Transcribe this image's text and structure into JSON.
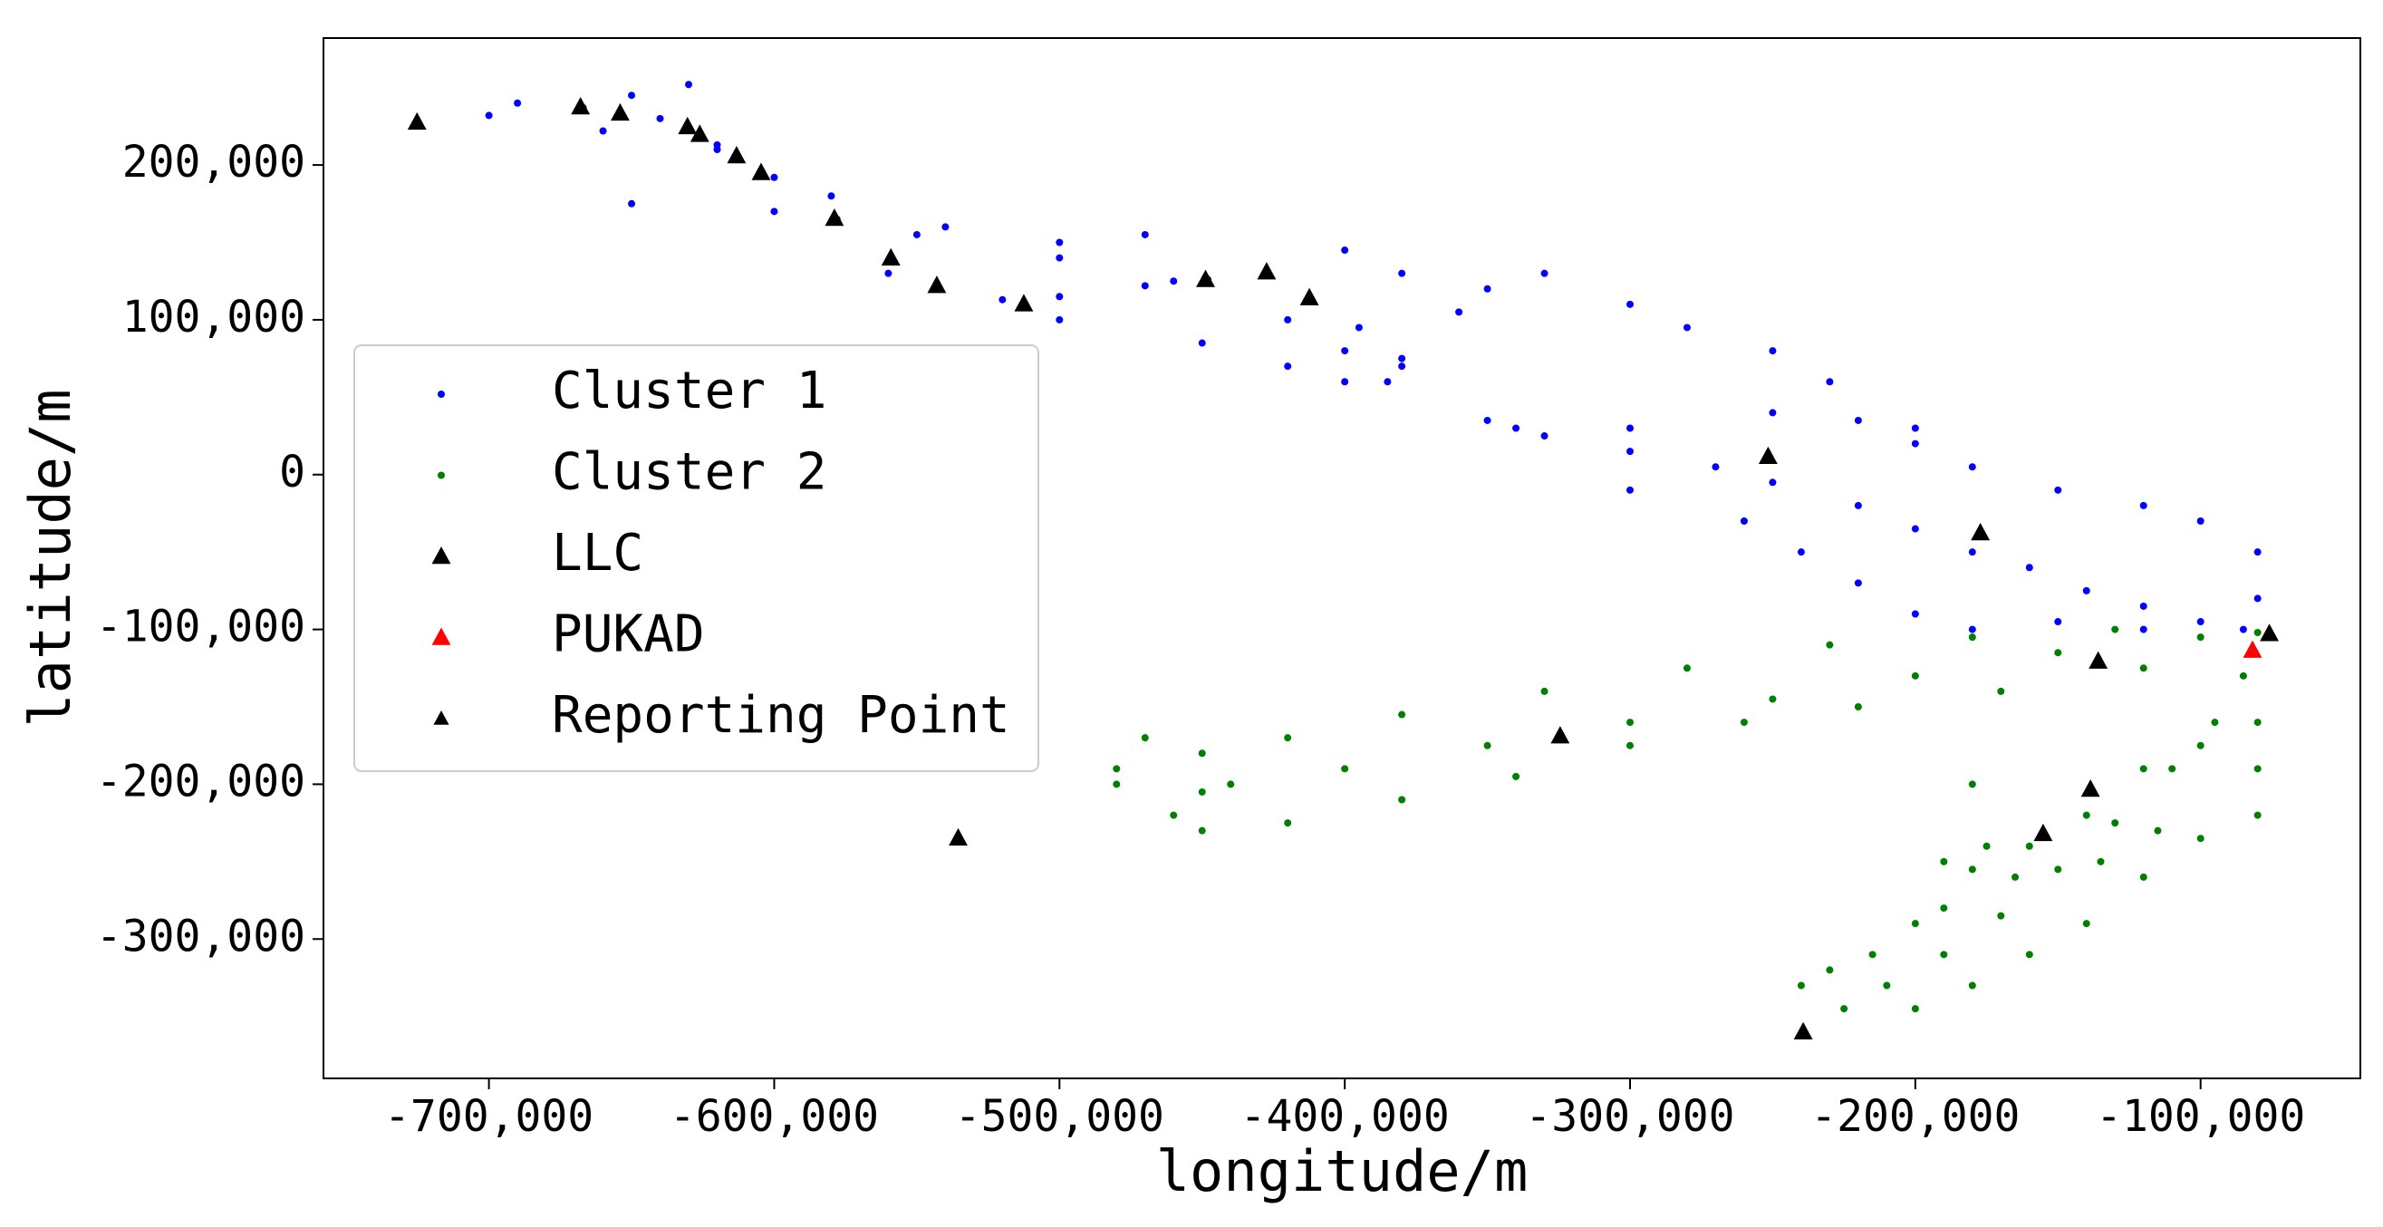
{
  "chart_data": {
    "type": "scatter",
    "xlabel": "longitude/m",
    "ylabel": "latitude/m",
    "xlim": [
      -758000,
      -44000
    ],
    "ylim": [
      -390000,
      282000
    ],
    "xticks": [
      {
        "value": -700000,
        "label": "-700,000"
      },
      {
        "value": -600000,
        "label": "-600,000"
      },
      {
        "value": -500000,
        "label": "-500,000"
      },
      {
        "value": -400000,
        "label": "-400,000"
      },
      {
        "value": -300000,
        "label": "-300,000"
      },
      {
        "value": -200000,
        "label": "-200,000"
      },
      {
        "value": -100000,
        "label": "-100,000"
      }
    ],
    "yticks": [
      {
        "value": -300000,
        "label": "-300,000"
      },
      {
        "value": -200000,
        "label": "-200,000"
      },
      {
        "value": -100000,
        "label": "-100,000"
      },
      0,
      {
        "value": 100000,
        "label": "100,000"
      },
      {
        "value": 200000,
        "label": "200,000"
      }
    ],
    "grid": false,
    "legend": "center left",
    "series": [
      {
        "name": "Cluster 1",
        "color": "#0000ff",
        "marker": "dot",
        "x": [
          -725000,
          -700000,
          -667000,
          -640000,
          -620000,
          -600000,
          -578000,
          -559000,
          -543000,
          -520000,
          -500000,
          -470000,
          -448000,
          -427000,
          -412000,
          -395000,
          -380000,
          -690000,
          -650000,
          -630000,
          -660000,
          -620000,
          -580000,
          -540000,
          -500000,
          -470000,
          -650000,
          -600000,
          -550000,
          -500000,
          -460000,
          -420000,
          -400000,
          -385000,
          -560000,
          -500000,
          -450000,
          -420000,
          -400000,
          -380000,
          -350000,
          -330000,
          -300000,
          -270000,
          -250000,
          -220000,
          -200000,
          -180000,
          -160000,
          -140000,
          -120000,
          -100000,
          -85000,
          -340000,
          -300000,
          -250000,
          -220000,
          -200000,
          -180000,
          -150000,
          -120000,
          -100000,
          -350000,
          -330000,
          -300000,
          -280000,
          -250000,
          -230000,
          -200000,
          -400000,
          -380000,
          -360000,
          -300000,
          -260000,
          -240000,
          -220000,
          -200000,
          -180000,
          -150000,
          -120000,
          -80000,
          -80000
        ],
        "y": [
          228000,
          232000,
          237000,
          230000,
          213000,
          192000,
          165000,
          140000,
          122000,
          113000,
          115000,
          122000,
          126000,
          131000,
          114000,
          95000,
          75000,
          240000,
          245000,
          252000,
          222000,
          210000,
          180000,
          160000,
          150000,
          155000,
          175000,
          170000,
          155000,
          140000,
          125000,
          100000,
          80000,
          60000,
          130000,
          100000,
          85000,
          70000,
          60000,
          70000,
          35000,
          25000,
          15000,
          5000,
          -5000,
          -20000,
          -35000,
          -50000,
          -60000,
          -75000,
          -85000,
          -95000,
          -100000,
          30000,
          30000,
          40000,
          35000,
          20000,
          5000,
          -10000,
          -20000,
          -30000,
          120000,
          130000,
          110000,
          95000,
          80000,
          60000,
          30000,
          145000,
          130000,
          105000,
          -10000,
          -30000,
          -50000,
          -70000,
          -90000,
          -100000,
          -95000,
          -100000,
          -80000,
          -50000
        ]
      },
      {
        "name": "Cluster 2",
        "color": "#008000",
        "marker": "dot",
        "x": [
          -80000,
          -100000,
          -150000,
          -200000,
          -250000,
          -300000,
          -350000,
          -400000,
          -450000,
          -460000,
          -480000,
          -450000,
          -420000,
          -380000,
          -330000,
          -280000,
          -230000,
          -180000,
          -130000,
          -450000,
          -420000,
          -380000,
          -340000,
          -300000,
          -260000,
          -220000,
          -170000,
          -120000,
          -480000,
          -470000,
          -440000,
          -225000,
          -210000,
          -190000,
          -170000,
          -150000,
          -130000,
          -110000,
          -95000,
          -85000,
          -200000,
          -180000,
          -160000,
          -140000,
          -120000,
          -100000,
          -80000,
          -80000,
          -80000,
          -230000,
          -200000,
          -180000,
          -160000,
          -140000,
          -120000,
          -100000,
          -180000,
          -175000,
          -190000,
          -240000,
          -215000,
          -190000,
          -165000,
          -135000,
          -115000
        ],
        "y": [
          -102000,
          -105000,
          -115000,
          -130000,
          -145000,
          -160000,
          -175000,
          -190000,
          -205000,
          -220000,
          -190000,
          -180000,
          -170000,
          -155000,
          -140000,
          -125000,
          -110000,
          -105000,
          -100000,
          -230000,
          -225000,
          -210000,
          -195000,
          -175000,
          -160000,
          -150000,
          -140000,
          -125000,
          -200000,
          -170000,
          -200000,
          -345000,
          -330000,
          -310000,
          -285000,
          -255000,
          -225000,
          -190000,
          -160000,
          -130000,
          -345000,
          -330000,
          -310000,
          -290000,
          -260000,
          -235000,
          -220000,
          -190000,
          -160000,
          -320000,
          -290000,
          -255000,
          -240000,
          -220000,
          -190000,
          -175000,
          -200000,
          -240000,
          -250000,
          -330000,
          -310000,
          -280000,
          -260000,
          -250000,
          -230000
        ]
      },
      {
        "name": "LLC",
        "color": "#000000",
        "marker": "triangle",
        "x": [
          -75900
        ],
        "y": [
          -102700
        ]
      },
      {
        "name": "PUKAD",
        "color": "#ff0000",
        "marker": "triangle",
        "x": [
          -81800
        ],
        "y": [
          -113500
        ]
      },
      {
        "name": "Reporting Point",
        "color": "#000000",
        "marker": "triangle",
        "x": [
          -725200,
          -667900,
          -654000,
          -630400,
          -626100,
          -613200,
          -604600,
          -578900,
          -559100,
          -543000,
          -512500,
          -448800,
          -427400,
          -412400,
          -251600,
          -177200,
          -135900,
          -324500,
          -138600,
          -155200,
          -535500,
          -239300
        ],
        "y": [
          227600,
          237500,
          233500,
          224700,
          219700,
          205900,
          195100,
          165500,
          139900,
          122100,
          110300,
          126000,
          130900,
          114200,
          11700,
          -37600,
          -120500,
          -168800,
          -203300,
          -231900,
          -234800,
          -360000
        ]
      }
    ]
  }
}
